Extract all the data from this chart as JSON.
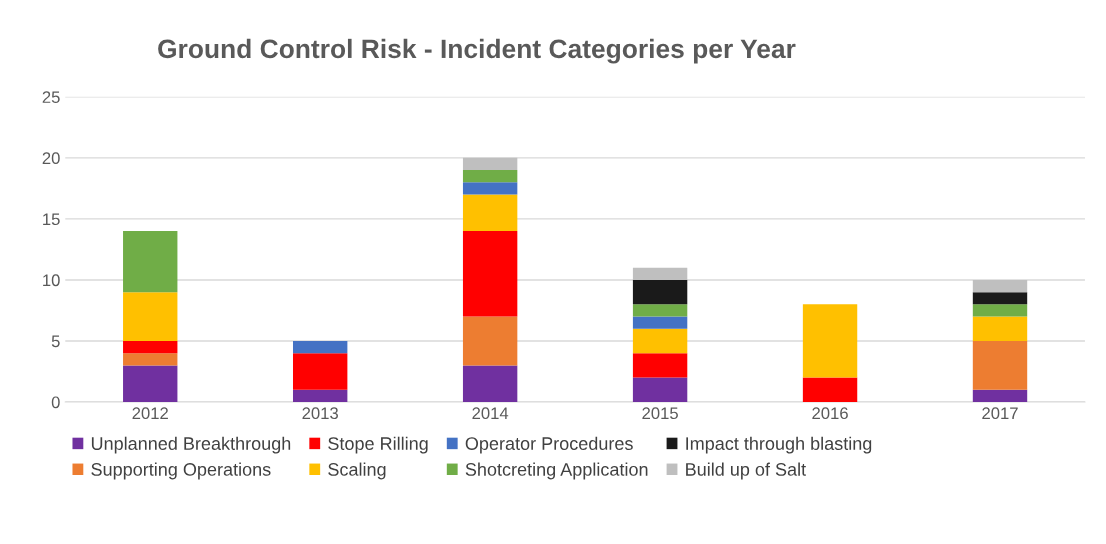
{
  "chart_data": {
    "type": "bar",
    "title": "Ground Control Risk - Incident Categories per Year",
    "categories": [
      "2012",
      "2013",
      "2014",
      "2015",
      "2016",
      "2017"
    ],
    "stacked": true,
    "series": [
      {
        "name": "Unplanned Breakthrough",
        "color": "#7030a0",
        "values": [
          3,
          1,
          3,
          2,
          0,
          1
        ]
      },
      {
        "name": "Supporting Operations",
        "color": "#ed7d31",
        "values": [
          1,
          0,
          4,
          0,
          0,
          4
        ]
      },
      {
        "name": "Stope Rilling",
        "color": "#ff0000",
        "values": [
          1,
          3,
          7,
          2,
          2,
          0
        ]
      },
      {
        "name": "Scaling",
        "color": "#ffc000",
        "values": [
          4,
          0,
          3,
          2,
          6,
          2
        ]
      },
      {
        "name": "Operator Procedures",
        "color": "#4472c4",
        "values": [
          0,
          1,
          1,
          1,
          0,
          0
        ]
      },
      {
        "name": "Shotcreting Application",
        "color": "#70ad47",
        "values": [
          5,
          0,
          1,
          1,
          0,
          1
        ]
      },
      {
        "name": "Impact through blasting",
        "color": "#1a1a1a",
        "values": [
          0,
          0,
          0,
          2,
          0,
          1
        ]
      },
      {
        "name": "Build up of Salt",
        "color": "#bfbfbf",
        "values": [
          0,
          0,
          1,
          1,
          0,
          1
        ]
      }
    ],
    "ylim": [
      0,
      25
    ],
    "yticks": [
      0,
      5,
      10,
      15,
      20,
      25
    ],
    "grid": "y",
    "legend": "bottom"
  }
}
